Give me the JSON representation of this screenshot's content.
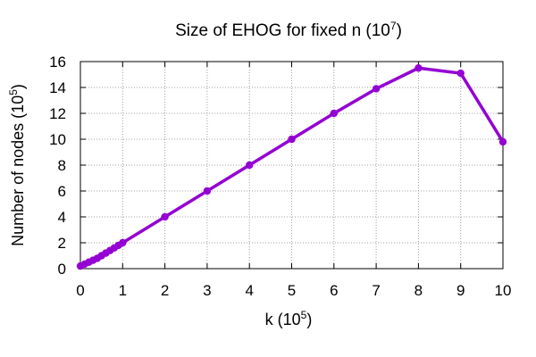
{
  "chart_data": {
    "type": "line",
    "title": {
      "text": "Size of EHOG for fixed n (10",
      "sup": "7",
      "tail": ")"
    },
    "xlabel": {
      "text": "k (10",
      "sup": "5",
      "tail": ")"
    },
    "ylabel": {
      "text": "Number of nodes (10",
      "sup": "5",
      "tail": ")"
    },
    "xlim": [
      0,
      10
    ],
    "ylim": [
      0,
      16
    ],
    "xticks": [
      0,
      1,
      2,
      3,
      4,
      5,
      6,
      7,
      8,
      9,
      10
    ],
    "yticks": [
      0,
      2,
      4,
      6,
      8,
      10,
      12,
      14,
      16
    ],
    "grid": true,
    "legend": "none",
    "series": [
      {
        "color": "#9400d3",
        "x": [
          0.0,
          0.1,
          0.2,
          0.3,
          0.4,
          0.5,
          0.6,
          0.7,
          0.8,
          0.9,
          1,
          2,
          3,
          4,
          5,
          6,
          7,
          8,
          9,
          10
        ],
        "y": [
          0.2,
          0.35,
          0.5,
          0.65,
          0.8,
          1.0,
          1.2,
          1.4,
          1.6,
          1.8,
          2.0,
          4.0,
          6.0,
          8.0,
          10.0,
          12.0,
          13.9,
          15.5,
          15.1,
          9.8
        ]
      }
    ]
  }
}
